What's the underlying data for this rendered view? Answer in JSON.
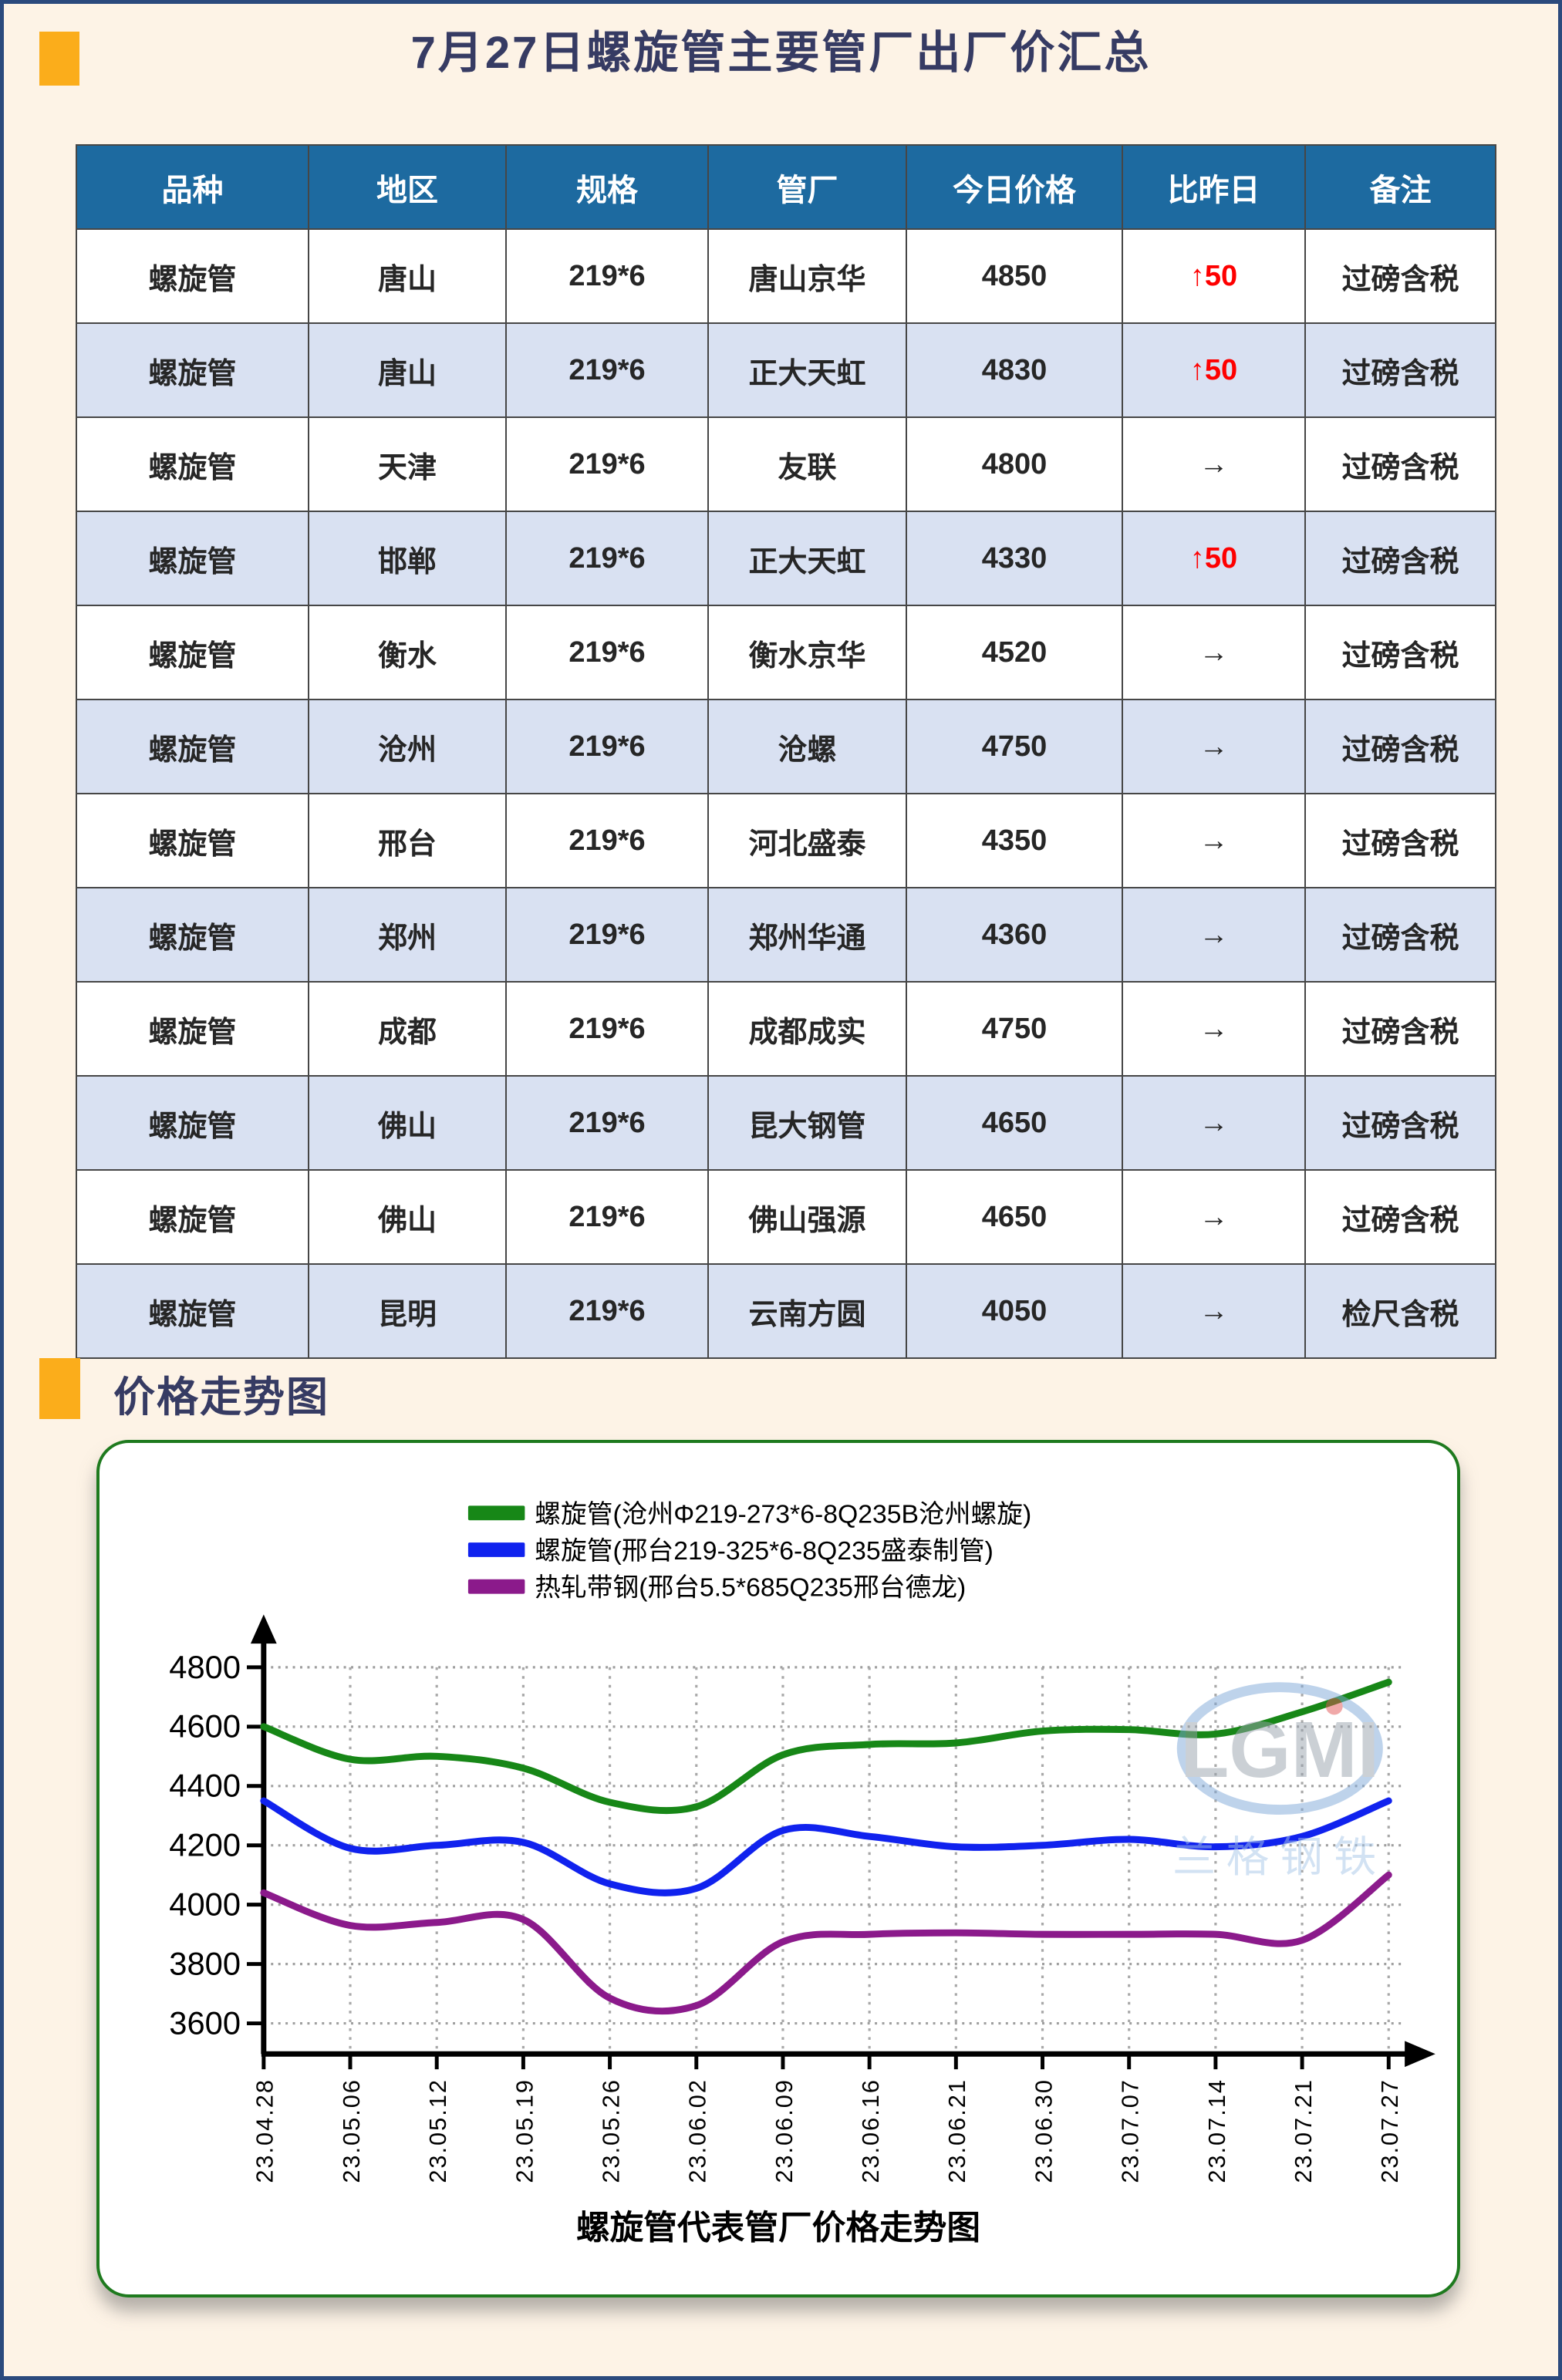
{
  "page": {
    "title": "7月27日螺旋管主要管厂出厂价汇总",
    "section_title": "价格走势图"
  },
  "colors": {
    "background": "#fdf3e6",
    "page_border": "#2b4a7d",
    "accent_orange": "#fbad1b",
    "title_navy": "#363b63",
    "header_blue": "#1d6aa0",
    "alt_row_blue": "#d9e1f2",
    "up_red": "#fe0000",
    "chart_border_green": "#1e7a1e"
  },
  "table": {
    "headers": [
      "品种",
      "地区",
      "规格",
      "管厂",
      "今日价格",
      "比昨日",
      "备注"
    ],
    "rows": [
      {
        "variety": "螺旋管",
        "region": "唐山",
        "spec": "219*6",
        "mill": "唐山京华",
        "price": "4850",
        "change": "↑50",
        "direction": "up",
        "note": "过磅含税"
      },
      {
        "variety": "螺旋管",
        "region": "唐山",
        "spec": "219*6",
        "mill": "正大天虹",
        "price": "4830",
        "change": "↑50",
        "direction": "up",
        "note": "过磅含税"
      },
      {
        "variety": "螺旋管",
        "region": "天津",
        "spec": "219*6",
        "mill": "友联",
        "price": "4800",
        "change": "→",
        "direction": "flat",
        "note": "过磅含税"
      },
      {
        "variety": "螺旋管",
        "region": "邯郸",
        "spec": "219*6",
        "mill": "正大天虹",
        "price": "4330",
        "change": "↑50",
        "direction": "up",
        "note": "过磅含税"
      },
      {
        "variety": "螺旋管",
        "region": "衡水",
        "spec": "219*6",
        "mill": "衡水京华",
        "price": "4520",
        "change": "→",
        "direction": "flat",
        "note": "过磅含税"
      },
      {
        "variety": "螺旋管",
        "region": "沧州",
        "spec": "219*6",
        "mill": "沧螺",
        "price": "4750",
        "change": "→",
        "direction": "flat",
        "note": "过磅含税"
      },
      {
        "variety": "螺旋管",
        "region": "邢台",
        "spec": "219*6",
        "mill": "河北盛泰",
        "price": "4350",
        "change": "→",
        "direction": "flat",
        "note": "过磅含税"
      },
      {
        "variety": "螺旋管",
        "region": "郑州",
        "spec": "219*6",
        "mill": "郑州华通",
        "price": "4360",
        "change": "→",
        "direction": "flat",
        "note": "过磅含税"
      },
      {
        "variety": "螺旋管",
        "region": "成都",
        "spec": "219*6",
        "mill": "成都成实",
        "price": "4750",
        "change": "→",
        "direction": "flat",
        "note": "过磅含税"
      },
      {
        "variety": "螺旋管",
        "region": "佛山",
        "spec": "219*6",
        "mill": "昆大钢管",
        "price": "4650",
        "change": "→",
        "direction": "flat",
        "note": "过磅含税"
      },
      {
        "variety": "螺旋管",
        "region": "佛山",
        "spec": "219*6",
        "mill": "佛山强源",
        "price": "4650",
        "change": "→",
        "direction": "flat",
        "note": "过磅含税"
      },
      {
        "variety": "螺旋管",
        "region": "昆明",
        "spec": "219*6",
        "mill": "云南方圆",
        "price": "4050",
        "change": "→",
        "direction": "flat",
        "note": "检尺含税"
      }
    ]
  },
  "chart_data": {
    "type": "line",
    "title": "螺旋管代表管厂价格走势图",
    "categories": [
      "23.04.28",
      "23.05.06",
      "23.05.12",
      "23.05.19",
      "23.05.26",
      "23.06.02",
      "23.06.09",
      "23.06.16",
      "23.06.21",
      "23.06.30",
      "23.07.07",
      "23.07.14",
      "23.07.21",
      "23.07.27"
    ],
    "series": [
      {
        "name": "螺旋管(沧州Φ219-273*6-8Q235B沧州螺旋)",
        "color": "#178717",
        "values": [
          4600,
          4490,
          4500,
          4460,
          4345,
          4330,
          4505,
          4540,
          4545,
          4585,
          4590,
          4575,
          4650,
          4750
        ]
      },
      {
        "name": "螺旋管(邢台219-325*6-8Q235盛泰制管)",
        "color": "#1022ee",
        "values": [
          4350,
          4190,
          4200,
          4210,
          4070,
          4055,
          4250,
          4230,
          4195,
          4200,
          4220,
          4195,
          4230,
          4350
        ]
      },
      {
        "name": "热轧带钢(邢台5.5*685Q235邢台德龙)",
        "color": "#8b1a8b",
        "values": [
          4040,
          3930,
          3940,
          3950,
          3685,
          3660,
          3875,
          3900,
          3905,
          3900,
          3900,
          3900,
          3880,
          4100
        ]
      }
    ],
    "ylim": [
      3600,
      4800
    ],
    "ytick_step": 200,
    "grid": true,
    "legend_position": "top-center",
    "watermark": {
      "logo": "LGMI",
      "text": "兰格钢铁"
    }
  }
}
